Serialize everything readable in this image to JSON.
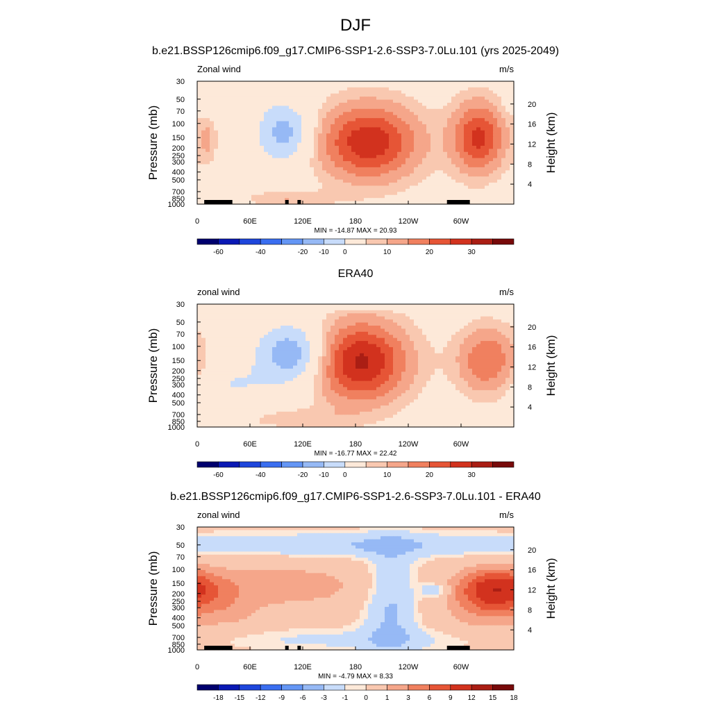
{
  "figure": {
    "title": "DJF",
    "contour_palette_full": [
      "#00006e",
      "#0a19b4",
      "#1e46dc",
      "#3a6ef0",
      "#6496f5",
      "#96b9f5",
      "#c8dcfa",
      "#fde9d9",
      "#f9c8b0",
      "#f5a68a",
      "#f0805f",
      "#e65536",
      "#d2321e",
      "#aa1e14",
      "#780a0a"
    ]
  },
  "chart_data": [
    {
      "type": "heatmap",
      "title": "b.e21.BSSP126cmip6.f09_g17.CMIP6-SSP1-2.6-SSP3-7.0Lu.101 (yrs 2025-2049)",
      "left_label": "Zonal wind",
      "units": "m/s",
      "ylabel": "Pressure (mb)",
      "ylabel_right": "Height (km)",
      "x_ticks": [
        "0",
        "60E",
        "120E",
        "180",
        "120W",
        "60W"
      ],
      "x_tick_lon": [
        0,
        60,
        120,
        180,
        240,
        300
      ],
      "x_range": [
        0,
        360
      ],
      "y_ticks": [
        "30",
        "50",
        "70",
        "100",
        "150",
        "200",
        "250",
        "300",
        "400",
        "500",
        "700",
        "850",
        "1000"
      ],
      "y_tick_values": [
        30,
        50,
        70,
        100,
        150,
        200,
        250,
        300,
        400,
        500,
        700,
        850,
        1000
      ],
      "y_range": [
        30,
        1000
      ],
      "y_scale": "log",
      "right_ticks": [
        "20",
        "16",
        "12",
        "8",
        "4"
      ],
      "right_tick_values": [
        20,
        16,
        12,
        8,
        4
      ],
      "min_max": "MIN = -14.87  MAX =  20.93",
      "colorbar_labels": [
        "-60",
        "-40",
        "-20",
        "-10",
        "0",
        "10",
        "20",
        "30"
      ],
      "colorbar_label_box": [
        1,
        3,
        5,
        6,
        7,
        9,
        11,
        13
      ],
      "background_level": 7,
      "features": [
        {
          "lon": 195,
          "p": 170,
          "dlon": 42,
          "dlogp": 0.8,
          "amp": 21
        },
        {
          "lon": 320,
          "p": 150,
          "dlon": 22,
          "dlogp": 0.75,
          "amp": 19
        },
        {
          "lon": 100,
          "p": 130,
          "dlon": 22,
          "dlogp": 0.6,
          "amp": -13
        },
        {
          "lon": 12,
          "p": 160,
          "dlon": 8,
          "dlogp": 0.5,
          "amp": 6
        },
        {
          "lon": 100,
          "p": 850,
          "dlon": 40,
          "dlogp": 0.15,
          "amp": 6
        },
        {
          "lon": 20,
          "p": 700,
          "dlon": 22,
          "dlogp": 0.2,
          "amp": -5
        },
        {
          "lon": 20,
          "p": 60,
          "dlon": 18,
          "dlogp": 0.2,
          "amp": -5
        }
      ],
      "terrain": [
        [
          8,
          40
        ],
        [
          100,
          104
        ],
        [
          114,
          118
        ],
        [
          284,
          310
        ]
      ]
    },
    {
      "type": "heatmap",
      "title": "ERA40",
      "left_label": "zonal wind",
      "units": "m/s",
      "ylabel": "Pressure (mb)",
      "ylabel_right": "Height (km)",
      "x_ticks": [
        "0",
        "60E",
        "120E",
        "180",
        "120W",
        "60W"
      ],
      "x_tick_lon": [
        0,
        60,
        120,
        180,
        240,
        300
      ],
      "x_range": [
        0,
        360
      ],
      "y_ticks": [
        "30",
        "50",
        "70",
        "100",
        "150",
        "200",
        "250",
        "300",
        "400",
        "500",
        "700",
        "850",
        "1000"
      ],
      "y_tick_values": [
        30,
        50,
        70,
        100,
        150,
        200,
        250,
        300,
        400,
        500,
        700,
        850,
        1000
      ],
      "y_range": [
        30,
        1000
      ],
      "y_scale": "log",
      "right_ticks": [
        "20",
        "16",
        "12",
        "8",
        "4"
      ],
      "right_tick_values": [
        20,
        16,
        12,
        8,
        4
      ],
      "min_max": "MIN = -16.77  MAX =  22.42",
      "colorbar_labels": [
        "-60",
        "-40",
        "-20",
        "-10",
        "0",
        "10",
        "20",
        "30"
      ],
      "colorbar_label_box": [
        1,
        3,
        5,
        6,
        7,
        9,
        11,
        13
      ],
      "background_level": 7,
      "features": [
        {
          "lon": 185,
          "p": 155,
          "dlon": 40,
          "dlogp": 0.85,
          "amp": 23
        },
        {
          "lon": 330,
          "p": 150,
          "dlon": 25,
          "dlogp": 0.7,
          "amp": 14
        },
        {
          "lon": 110,
          "p": 125,
          "dlon": 28,
          "dlogp": 0.6,
          "amp": -16
        },
        {
          "lon": 40,
          "p": 300,
          "dlon": 30,
          "dlogp": 0.45,
          "amp": -5
        },
        {
          "lon": 110,
          "p": 800,
          "dlon": 45,
          "dlogp": 0.2,
          "amp": 5
        },
        {
          "lon": 180,
          "p": 32,
          "dlon": 120,
          "dlogp": 0.08,
          "amp": -4
        }
      ],
      "terrain": []
    },
    {
      "type": "heatmap",
      "title": "b.e21.BSSP126cmip6.f09_g17.CMIP6-SSP1-2.6-SSP3-7.0Lu.101 - ERA40",
      "left_label": "zonal wind",
      "units": "m/s",
      "ylabel": "Pressure (mb)",
      "ylabel_right": "Height (km)",
      "x_ticks": [
        "0",
        "60E",
        "120E",
        "180",
        "120W",
        "60W"
      ],
      "x_tick_lon": [
        0,
        60,
        120,
        180,
        240,
        300
      ],
      "x_range": [
        0,
        360
      ],
      "y_ticks": [
        "30",
        "50",
        "70",
        "100",
        "150",
        "200",
        "250",
        "300",
        "400",
        "500",
        "700",
        "850",
        "1000"
      ],
      "y_tick_values": [
        30,
        50,
        70,
        100,
        150,
        200,
        250,
        300,
        400,
        500,
        700,
        850,
        1000
      ],
      "y_range": [
        30,
        1000
      ],
      "y_scale": "log",
      "right_ticks": [
        "20",
        "16",
        "12",
        "8",
        "4"
      ],
      "right_tick_values": [
        20,
        16,
        12,
        8,
        4
      ],
      "min_max": "MIN =  -4.79  MAX =   8.33",
      "colorbar_labels": [
        "-18",
        "-15",
        "-12",
        "-9",
        "-6",
        "-3",
        "-1",
        "0",
        "1",
        "3",
        "6",
        "9",
        "12",
        "15",
        "18"
      ],
      "colorbar_label_box": [
        1,
        2,
        3,
        4,
        5,
        6,
        7,
        8,
        9,
        10,
        11,
        12,
        13,
        14,
        15
      ],
      "background_level": 8,
      "features": [
        {
          "lon": 180,
          "p": 50,
          "dlon": 220,
          "dlogp": 0.25,
          "amp": -2.5
        },
        {
          "lon": 90,
          "p": 160,
          "dlon": 80,
          "dlogp": 0.45,
          "amp": 2.5
        },
        {
          "lon": 340,
          "p": 170,
          "dlon": 30,
          "dlogp": 0.4,
          "amp": 6
        },
        {
          "lon": 220,
          "p": 250,
          "dlon": 22,
          "dlogp": 1.2,
          "amp": -3
        },
        {
          "lon": 330,
          "p": 320,
          "dlon": 35,
          "dlogp": 0.5,
          "amp": 2.5
        },
        {
          "lon": 40,
          "p": 350,
          "dlon": 25,
          "dlogp": 0.4,
          "amp": 1.5
        },
        {
          "lon": 180,
          "p": 750,
          "dlon": 140,
          "dlogp": 0.25,
          "amp": -1.5
        },
        {
          "lon": 270,
          "p": 185,
          "dlon": 10,
          "dlogp": 0.15,
          "amp": -3
        }
      ],
      "terrain": [
        [
          8,
          40
        ],
        [
          100,
          104
        ],
        [
          114,
          118
        ],
        [
          284,
          310
        ]
      ]
    }
  ]
}
